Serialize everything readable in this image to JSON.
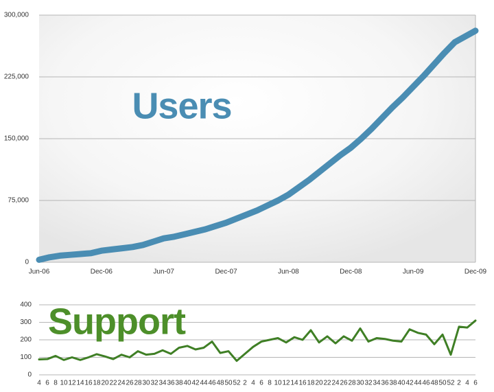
{
  "chart_data": [
    {
      "type": "line",
      "title": "Users",
      "color": "#4a8db3",
      "categories": [
        "Jun-06",
        null,
        null,
        null,
        null,
        null,
        "Dec-06",
        null,
        null,
        null,
        null,
        null,
        "Jun-07",
        null,
        null,
        null,
        null,
        null,
        "Dec-07",
        null,
        null,
        null,
        null,
        null,
        "Jun-08",
        null,
        null,
        null,
        null,
        null,
        "Dec-08",
        null,
        null,
        null,
        null,
        null,
        "Jun-09",
        null,
        null,
        null,
        null,
        null,
        "Dec-09"
      ],
      "values": [
        3000,
        6000,
        8000,
        9000,
        10000,
        11000,
        14000,
        15500,
        17000,
        18500,
        21000,
        25000,
        29000,
        31000,
        34000,
        37000,
        40000,
        44000,
        48000,
        53000,
        58000,
        63000,
        69000,
        75000,
        82000,
        91000,
        100000,
        110000,
        120000,
        130000,
        139000,
        150000,
        162000,
        175000,
        188000,
        200000,
        213000,
        226000,
        240000,
        254000,
        267000,
        274000,
        281000
      ],
      "ylim": [
        0,
        300000
      ],
      "yticks": [
        0,
        {
          "value": 75000,
          "label": "75,000"
        },
        {
          "value": 150000,
          "label": "150,000"
        },
        {
          "value": 225000,
          "label": "225,000"
        },
        {
          "value": 300000,
          "label": "300,000"
        }
      ],
      "grid": true
    },
    {
      "type": "line",
      "title": "Support",
      "color": "#3f7f25",
      "categories": [
        "4",
        "6",
        "8",
        "10",
        "12",
        "14",
        "16",
        "18",
        "20",
        "22",
        "24",
        "26",
        "28",
        "30",
        "32",
        "34",
        "36",
        "38",
        "40",
        "42",
        "44",
        "46",
        "48",
        "50",
        "52",
        "2",
        "4",
        "6",
        "8",
        "10",
        "12",
        "14",
        "16",
        "18",
        "20",
        "22",
        "24",
        "26",
        "28",
        "30",
        "32",
        "34",
        "36",
        "38",
        "40",
        "42",
        "44",
        "46",
        "48",
        "50",
        "52",
        "2",
        "4",
        "6"
      ],
      "values": [
        88,
        90,
        108,
        85,
        100,
        85,
        100,
        118,
        105,
        90,
        115,
        100,
        135,
        115,
        120,
        140,
        120,
        155,
        165,
        145,
        155,
        190,
        125,
        135,
        80,
        120,
        160,
        190,
        200,
        210,
        185,
        215,
        200,
        255,
        185,
        220,
        180,
        220,
        195,
        265,
        190,
        210,
        205,
        195,
        190,
        260,
        240,
        230,
        175,
        230,
        115,
        275,
        270,
        310
      ],
      "ylim": [
        0,
        400
      ],
      "yticks": [
        0,
        100,
        200,
        300,
        400
      ],
      "grid": true
    }
  ]
}
